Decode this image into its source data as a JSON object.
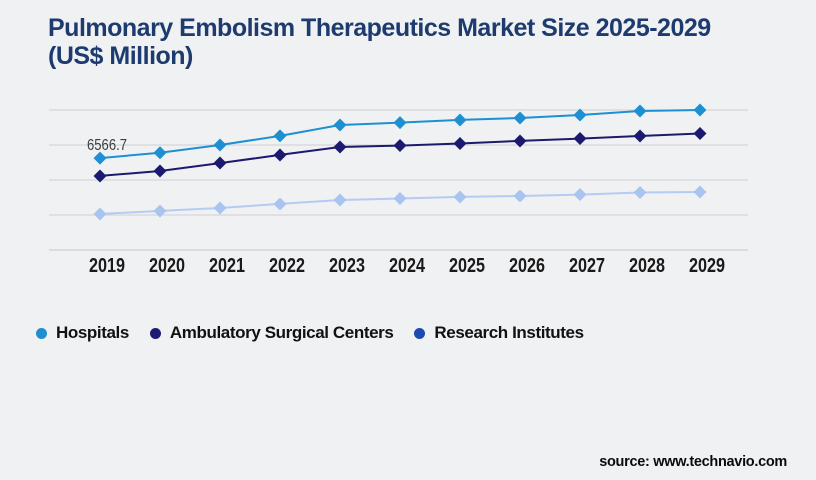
{
  "page": {
    "background": "#f0f1f3"
  },
  "header": {
    "title": "Pulmonary Embolism Therapeutics Market Size 2025-2029 (US$ Million)",
    "title_color": "#1d3b6e"
  },
  "footer": {
    "source": "source: www.technavio.com"
  },
  "colors": {
    "grid": "#cfd0d3",
    "axis": "#c5c6c9",
    "tick_label": "#1a1a1a",
    "annotation": "#3d3d3d"
  },
  "chart_data": {
    "type": "line",
    "title": "Pulmonary Embolism Therapeutics Market Size 2025-2029 (US$ Million)",
    "xlabel": "",
    "ylabel": "",
    "x": [
      "2019",
      "2020",
      "2021",
      "2022",
      "2023",
      "2024",
      "2025",
      "2026",
      "2027",
      "2028",
      "2029"
    ],
    "series": [
      {
        "name": "Hospitals",
        "color": "#1e90d2",
        "marker_color": "#1e90d2",
        "legend_color": "#1e8fd1",
        "marker": "diamond",
        "values": [
          6566.7,
          6950,
          7500,
          8150,
          8930,
          9100,
          9290,
          9430,
          9640,
          9930,
          10000
        ]
      },
      {
        "name": "Ambulatory Surgical Centers",
        "color": "#1c1a6e",
        "marker_color": "#1c1a6e",
        "legend_color": "#1e1c72",
        "marker": "diamond",
        "values": [
          5290,
          5640,
          6210,
          6790,
          7360,
          7460,
          7610,
          7790,
          7960,
          8140,
          8320
        ]
      },
      {
        "name": "Research Institutes",
        "color": "#b4cbf3",
        "marker_color": "#a9c4ef",
        "legend_color": "#1c4bb0",
        "marker": "diamond",
        "values": [
          2570,
          2790,
          3000,
          3290,
          3570,
          3680,
          3790,
          3860,
          3960,
          4110,
          4140
        ]
      }
    ],
    "ylim": [
      0,
      10000
    ],
    "gridline_values": [
      0,
      2500,
      5000,
      7500,
      10000
    ],
    "grid": true,
    "legend_position": "bottom",
    "annotation": {
      "text": "6566.7",
      "series": "Hospitals",
      "x": "2019"
    }
  }
}
